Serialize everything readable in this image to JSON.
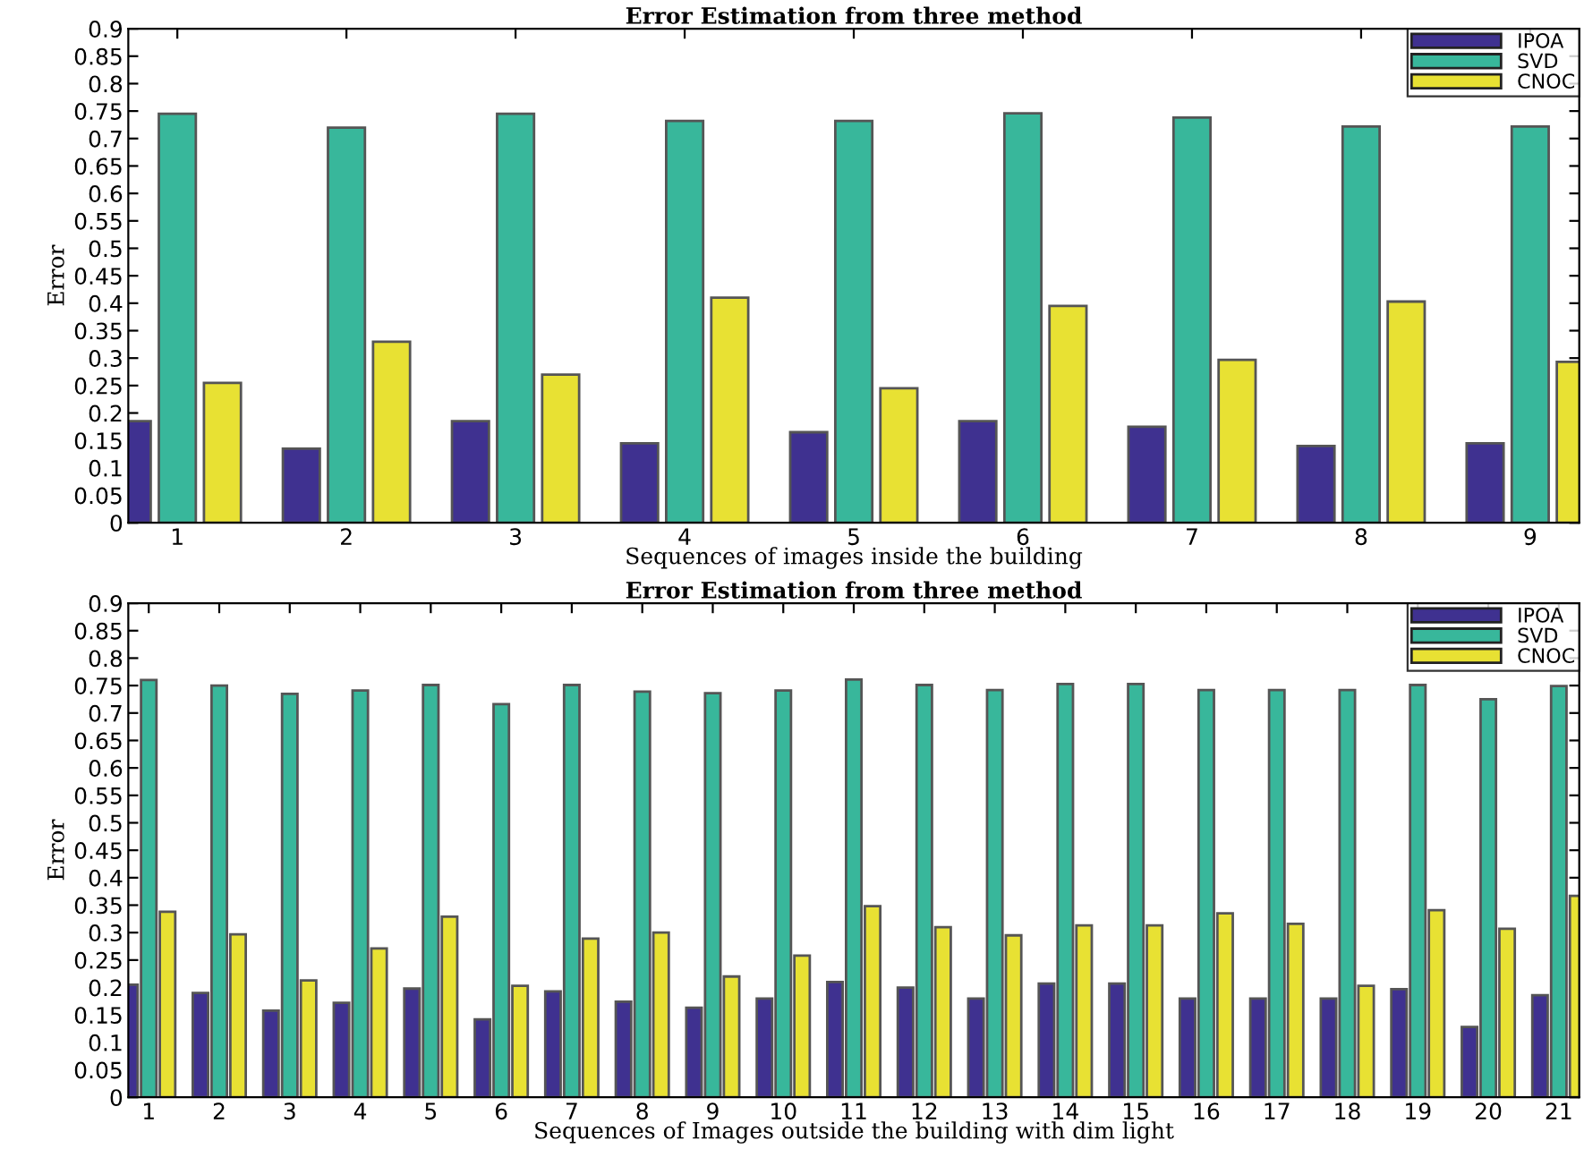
{
  "chart_data": [
    {
      "type": "bar",
      "title": "Error Estimation from three method",
      "xlabel": "Sequences of images inside the building",
      "ylabel": "Error",
      "categories": [
        "1",
        "2",
        "3",
        "4",
        "5",
        "6",
        "7",
        "8",
        "9"
      ],
      "series": [
        {
          "name": "IPOA",
          "color": "#3f3190",
          "values": [
            0.185,
            0.135,
            0.185,
            0.145,
            0.165,
            0.185,
            0.175,
            0.14,
            0.145
          ]
        },
        {
          "name": "SVD",
          "color": "#38b79b",
          "values": [
            0.745,
            0.72,
            0.745,
            0.732,
            0.732,
            0.746,
            0.738,
            0.722,
            0.722
          ]
        },
        {
          "name": "CNOC",
          "color": "#e8e133",
          "values": [
            0.255,
            0.33,
            0.27,
            0.41,
            0.245,
            0.395,
            0.297,
            0.403,
            0.293
          ]
        }
      ],
      "ylim": [
        0,
        0.9
      ],
      "yticks": [
        0,
        0.05,
        0.1,
        0.15,
        0.2,
        0.25,
        0.3,
        0.35,
        0.4,
        0.45,
        0.5,
        0.55,
        0.6,
        0.65,
        0.7,
        0.75,
        0.8,
        0.85,
        0.9
      ],
      "legend": "top right",
      "grid": false
    },
    {
      "type": "bar",
      "title": "Error Estimation from three method",
      "xlabel": "Sequences of Images outside the building with dim light",
      "ylabel": "Error",
      "categories": [
        "1",
        "2",
        "3",
        "4",
        "5",
        "6",
        "7",
        "8",
        "9",
        "10",
        "11",
        "12",
        "13",
        "14",
        "15",
        "16",
        "17",
        "18",
        "19",
        "20",
        "21"
      ],
      "series": [
        {
          "name": "IPOA",
          "color": "#3f3190",
          "values": [
            0.205,
            0.19,
            0.158,
            0.172,
            0.198,
            0.142,
            0.193,
            0.174,
            0.163,
            0.18,
            0.21,
            0.2,
            0.18,
            0.207,
            0.207,
            0.18,
            0.18,
            0.18,
            0.197,
            0.128,
            0.186
          ]
        },
        {
          "name": "SVD",
          "color": "#38b79b",
          "values": [
            0.76,
            0.75,
            0.735,
            0.741,
            0.751,
            0.716,
            0.751,
            0.739,
            0.736,
            0.741,
            0.761,
            0.751,
            0.742,
            0.753,
            0.753,
            0.742,
            0.742,
            0.742,
            0.751,
            0.725,
            0.749
          ]
        },
        {
          "name": "CNOC",
          "color": "#e8e133",
          "values": [
            0.338,
            0.297,
            0.213,
            0.271,
            0.329,
            0.203,
            0.289,
            0.3,
            0.22,
            0.258,
            0.348,
            0.31,
            0.295,
            0.313,
            0.313,
            0.335,
            0.316,
            0.203,
            0.341,
            0.307,
            0.367
          ]
        }
      ],
      "ylim": [
        0,
        0.9
      ],
      "yticks": [
        0,
        0.05,
        0.1,
        0.15,
        0.2,
        0.25,
        0.3,
        0.35,
        0.4,
        0.45,
        0.5,
        0.55,
        0.6,
        0.65,
        0.7,
        0.75,
        0.8,
        0.85,
        0.9
      ],
      "legend": "top right",
      "grid": false
    }
  ]
}
